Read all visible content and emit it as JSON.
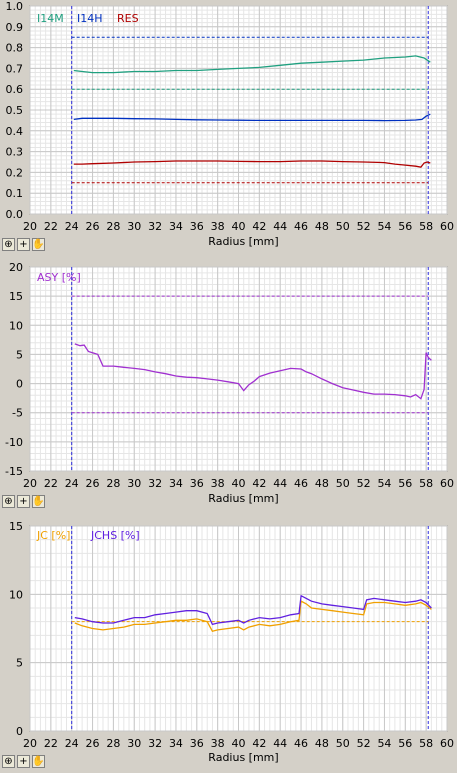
{
  "toolbar": {
    "zoom_icon": "zoom-icon",
    "add_icon": "plus-icon",
    "pan_icon": "hand-icon"
  },
  "chart_data": [
    {
      "type": "line",
      "xlabel": "Radius [mm]",
      "xlim": [
        20,
        60
      ],
      "ylim": [
        0.0,
        1.0
      ],
      "xticks": [
        "20",
        "22",
        "24",
        "26",
        "28",
        "30",
        "32",
        "34",
        "36",
        "38",
        "40",
        "42",
        "44",
        "46",
        "48",
        "50",
        "52",
        "54",
        "56",
        "58",
        "60"
      ],
      "yticks": [
        "0.0",
        "0.1",
        "0.2",
        "0.3",
        "0.4",
        "0.5",
        "0.6",
        "0.7",
        "0.8",
        "0.9",
        "1.0"
      ],
      "grid": true,
      "legend": "top-left",
      "markers_x": [
        24,
        58.2
      ],
      "series": [
        {
          "name": "I14M",
          "color": "#20a080",
          "x": [
            24.2,
            25,
            26,
            28,
            30,
            32,
            34,
            36,
            38,
            40,
            42,
            44,
            46,
            48,
            50,
            52,
            54,
            56,
            57,
            57.8,
            58.4
          ],
          "values": [
            0.69,
            0.685,
            0.68,
            0.68,
            0.685,
            0.685,
            0.69,
            0.69,
            0.695,
            0.7,
            0.705,
            0.715,
            0.725,
            0.73,
            0.735,
            0.74,
            0.75,
            0.755,
            0.76,
            0.75,
            0.73
          ],
          "limit": 0.6
        },
        {
          "name": "I14H",
          "color": "#0030c0",
          "x": [
            24.2,
            25,
            26,
            28,
            30,
            32,
            34,
            36,
            38,
            40,
            42,
            44,
            46,
            48,
            50,
            52,
            54,
            56,
            57,
            57.6,
            58,
            58.4
          ],
          "values": [
            0.455,
            0.46,
            0.46,
            0.46,
            0.458,
            0.457,
            0.455,
            0.453,
            0.452,
            0.451,
            0.45,
            0.45,
            0.45,
            0.45,
            0.45,
            0.45,
            0.449,
            0.45,
            0.452,
            0.455,
            0.47,
            0.48
          ],
          "limit": 0.85
        },
        {
          "name": "RES",
          "color": "#b00000",
          "x": [
            24.2,
            25,
            26,
            28,
            30,
            32,
            34,
            36,
            38,
            40,
            42,
            44,
            46,
            48,
            50,
            52,
            54,
            55,
            56,
            57,
            57.5,
            57.8,
            58.1,
            58.4
          ],
          "values": [
            0.24,
            0.24,
            0.242,
            0.245,
            0.25,
            0.252,
            0.255,
            0.255,
            0.255,
            0.253,
            0.252,
            0.252,
            0.255,
            0.255,
            0.252,
            0.25,
            0.247,
            0.24,
            0.235,
            0.23,
            0.225,
            0.245,
            0.25,
            0.245
          ],
          "limit": 0.15
        }
      ]
    },
    {
      "type": "line",
      "xlabel": "Radius [mm]",
      "xlim": [
        20,
        60
      ],
      "ylim": [
        -15,
        20
      ],
      "xticks": [
        "20",
        "22",
        "24",
        "26",
        "28",
        "30",
        "32",
        "34",
        "36",
        "38",
        "40",
        "42",
        "44",
        "46",
        "48",
        "50",
        "52",
        "54",
        "56",
        "58",
        "60"
      ],
      "yticks": [
        "-15",
        "-10",
        "-5",
        "0",
        "5",
        "10",
        "15",
        "20"
      ],
      "grid": true,
      "legend": "top-left",
      "markers_x": [
        24,
        58.2
      ],
      "limits": [
        15,
        -5
      ],
      "series": [
        {
          "name": "ASY [%]",
          "color": "#a030d0",
          "x": [
            24.3,
            24.8,
            25.2,
            25.6,
            26,
            26.5,
            27,
            28,
            29,
            30,
            31,
            32,
            33,
            34,
            35,
            36,
            37,
            38,
            39,
            40,
            40.5,
            41,
            41.5,
            42,
            43,
            44,
            45,
            46,
            46.5,
            47,
            48,
            49,
            50,
            51,
            52,
            53,
            54,
            55,
            56,
            56.5,
            57,
            57.5,
            57.8,
            58,
            58.2,
            58.5
          ],
          "values": [
            6.8,
            6.5,
            6.6,
            5.5,
            5.3,
            5.0,
            3.0,
            3.0,
            2.8,
            2.6,
            2.4,
            2.0,
            1.7,
            1.3,
            1.1,
            1.0,
            0.8,
            0.6,
            0.3,
            0.0,
            -1.2,
            -0.2,
            0.4,
            1.2,
            1.8,
            2.2,
            2.6,
            2.5,
            2.0,
            1.7,
            0.8,
            0.0,
            -0.7,
            -1.1,
            -1.5,
            -1.8,
            -1.8,
            -1.9,
            -2.1,
            -2.3,
            -1.9,
            -2.6,
            -1.0,
            5.3,
            4.5,
            4.0
          ]
        }
      ]
    },
    {
      "type": "line",
      "xlabel": "Radius [mm]",
      "xlim": [
        20,
        60
      ],
      "ylim": [
        0,
        15
      ],
      "xticks": [
        "20",
        "22",
        "24",
        "26",
        "28",
        "30",
        "32",
        "34",
        "36",
        "38",
        "40",
        "42",
        "44",
        "46",
        "48",
        "50",
        "52",
        "54",
        "56",
        "58",
        "60"
      ],
      "yticks": [
        "0",
        "5",
        "10",
        "15"
      ],
      "grid": true,
      "legend": "top-left",
      "markers_x": [
        24,
        58.2
      ],
      "limits": [
        8.0
      ],
      "series": [
        {
          "name": "JC [%]",
          "color": "#f0a000",
          "x": [
            24.3,
            25,
            26,
            27,
            28,
            29,
            30,
            31,
            32,
            33,
            34,
            35,
            36,
            37,
            37.5,
            38,
            39,
            40,
            40.5,
            41,
            42,
            43,
            44,
            45,
            45.8,
            46,
            46.5,
            47,
            48,
            49,
            50,
            51,
            52,
            52.3,
            53,
            54,
            55,
            56,
            57,
            57.5,
            58,
            58.5
          ],
          "values": [
            7.9,
            7.7,
            7.5,
            7.4,
            7.5,
            7.6,
            7.8,
            7.8,
            7.9,
            8.0,
            8.1,
            8.1,
            8.2,
            8.0,
            7.3,
            7.4,
            7.5,
            7.6,
            7.4,
            7.6,
            7.8,
            7.7,
            7.8,
            8.0,
            8.1,
            9.5,
            9.3,
            9.0,
            8.9,
            8.8,
            8.7,
            8.6,
            8.5,
            9.3,
            9.4,
            9.4,
            9.3,
            9.2,
            9.3,
            9.4,
            9.2,
            8.9
          ]
        },
        {
          "name": "JCHS [%]",
          "color": "#6020e0",
          "x": [
            24.3,
            25,
            26,
            27,
            28,
            29,
            30,
            31,
            32,
            33,
            34,
            35,
            36,
            37,
            37.5,
            38,
            39,
            40,
            40.5,
            41,
            42,
            43,
            44,
            45,
            45.8,
            46,
            46.5,
            47,
            48,
            49,
            50,
            51,
            52,
            52.3,
            53,
            54,
            55,
            56,
            57,
            57.5,
            58,
            58.5
          ],
          "values": [
            8.3,
            8.2,
            8.0,
            7.9,
            7.9,
            8.1,
            8.3,
            8.3,
            8.5,
            8.6,
            8.7,
            8.8,
            8.8,
            8.6,
            7.8,
            7.9,
            8.0,
            8.1,
            7.9,
            8.1,
            8.3,
            8.2,
            8.3,
            8.5,
            8.6,
            9.9,
            9.7,
            9.5,
            9.3,
            9.2,
            9.1,
            9.0,
            8.9,
            9.6,
            9.7,
            9.6,
            9.5,
            9.4,
            9.5,
            9.6,
            9.4,
            9.0
          ]
        }
      ]
    }
  ]
}
